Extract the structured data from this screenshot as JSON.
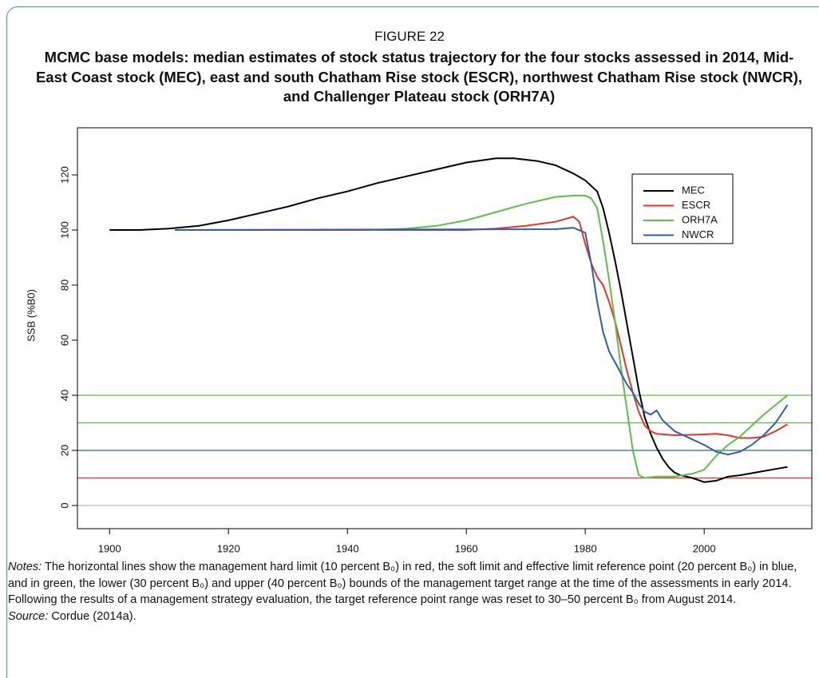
{
  "chart_data": {
    "type": "line",
    "figure_label": "FIGURE 22",
    "title": "MCMC base models: median estimates of stock status trajectory for the four stocks assessed in 2014, Mid-East Coast stock (MEC), east and south Chatham Rise stock (ESCR), northwest Chatham Rise stock (NWCR), and Challenger Plateau stock (ORH7A)",
    "ylabel": "SSB (%B0)",
    "xlim": [
      1894.6,
      2018.1
    ],
    "xticks": [
      1900,
      1920,
      1940,
      1960,
      1980,
      2000
    ],
    "ylim": [
      -8.4,
      137.1
    ],
    "yticks": [
      0,
      20,
      40,
      60,
      80,
      100,
      120
    ],
    "legend": "upper right",
    "reference_lines": [
      {
        "value": 0,
        "color": "#bdbdbd"
      },
      {
        "value": 10,
        "color": "#e8322a"
      },
      {
        "value": 20,
        "color": "#2f5fa8"
      },
      {
        "value": 30,
        "color": "#5cbf45"
      },
      {
        "value": 40,
        "color": "#5cbf45"
      }
    ],
    "series": [
      {
        "name": "MEC",
        "color": "#000000",
        "x": [
          1900,
          1905,
          1910,
          1915,
          1920,
          1925,
          1930,
          1935,
          1940,
          1945,
          1950,
          1955,
          1960,
          1965,
          1968,
          1972,
          1975,
          1978,
          1980,
          1982,
          1983,
          1984,
          1985,
          1986,
          1987,
          1988,
          1989,
          1990,
          1991,
          1992,
          1993,
          1994,
          1995,
          1996,
          1998,
          2000,
          2002,
          2004,
          2006,
          2010,
          2014
        ],
        "values": [
          100,
          100,
          100.5,
          101.5,
          103.5,
          106,
          108.5,
          111.5,
          114,
          117,
          119.5,
          122,
          124.5,
          126,
          126,
          125,
          123.5,
          120.5,
          118,
          114,
          108,
          99,
          89,
          78,
          66,
          54,
          42,
          32,
          26,
          21,
          17,
          14,
          12,
          11,
          10,
          8.5,
          9,
          10.5,
          11,
          12.5,
          14
        ]
      },
      {
        "name": "ESCR",
        "color": "#e8322a",
        "x": [
          1911,
          1960,
          1965,
          1970,
          1975,
          1978,
          1979,
          1980,
          1981,
          1982,
          1983,
          1984,
          1985,
          1986,
          1987,
          1988,
          1989,
          1990,
          1991,
          1992,
          1995,
          2000,
          2002,
          2004,
          2006,
          2008,
          2010,
          2012,
          2014
        ],
        "values": [
          100,
          100,
          100.5,
          101.5,
          103,
          104.8,
          103,
          95,
          88,
          83,
          80,
          74,
          67,
          58,
          49,
          41,
          34,
          29,
          27,
          26,
          25.5,
          25.8,
          26,
          25.5,
          24.5,
          24.5,
          25,
          27,
          29.5
        ]
      },
      {
        "name": "ORH7A",
        "color": "#5cbf45",
        "x": [
          1944,
          1950,
          1955,
          1960,
          1965,
          1970,
          1975,
          1978,
          1980,
          1981,
          1982,
          1983,
          1984,
          1985,
          1986,
          1987,
          1988,
          1989,
          1990,
          1992,
          1995,
          1998,
          2000,
          2002,
          2004,
          2006,
          2008,
          2010,
          2012,
          2014
        ],
        "values": [
          100,
          100.5,
          101.5,
          103.5,
          106.5,
          109.5,
          112,
          112.5,
          112.5,
          111.5,
          108,
          96,
          82,
          67,
          50,
          35,
          20,
          11,
          10,
          10.5,
          10.5,
          11.5,
          13,
          18,
          22,
          25,
          29,
          33,
          36.5,
          40
        ]
      },
      {
        "name": "NWCR",
        "color": "#2f5fa8",
        "x": [
          1911,
          1975,
          1978,
          1980,
          1981,
          1982,
          1983,
          1984,
          1985,
          1986,
          1987,
          1988,
          1989,
          1990,
          1991,
          1992,
          1993,
          1995,
          1998,
          2000,
          2002,
          2004,
          2006,
          2008,
          2010,
          2012,
          2014
        ],
        "values": [
          100,
          100.3,
          100.8,
          99,
          88,
          74,
          63,
          56,
          52,
          48,
          44,
          41,
          37,
          34,
          33,
          34.5,
          31,
          27,
          24,
          22,
          19.5,
          18.5,
          19.5,
          22,
          25.5,
          30,
          36.5
        ]
      }
    ],
    "notes_label": "Notes:",
    "notes": "The horizontal lines show the management hard limit (10 percent B₀) in red, the soft limit and effective limit reference point (20 percent B₀) in blue, and in green, the lower (30 percent B₀) and upper (40 percent B₀) bounds of the management target range at the time of the assessments in early 2014. Following the results of a management strategy evaluation, the target reference point range was reset to 30–50 percent B₀ from August 2014.",
    "source_label": "Source:",
    "source": "Cordue (2014a)."
  }
}
